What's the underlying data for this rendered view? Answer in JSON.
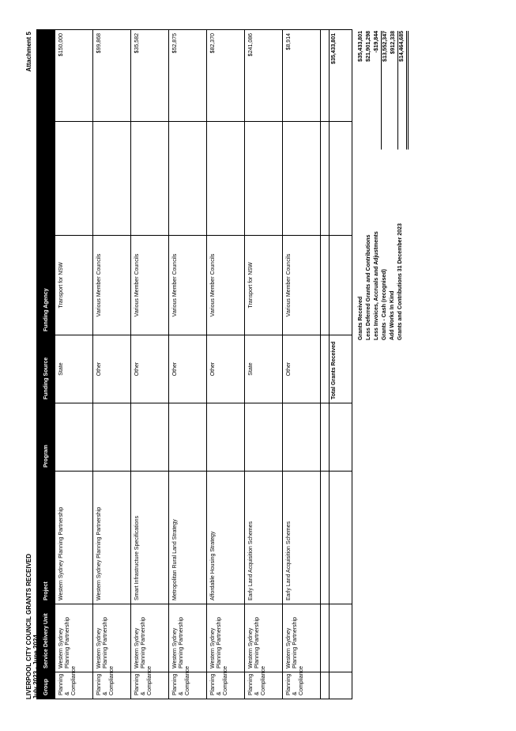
{
  "header": {
    "title_line1": "LIVERPOOL CITY COUNCIL GRANTS RECEIVED",
    "title_line2": "July 2023 - June 2024",
    "attachment": "Attachment 5"
  },
  "table": {
    "columns": [
      "Group",
      "Service Delivery Unit",
      "Project",
      "Program",
      "Funding Source",
      "Funding Agency",
      ""
    ],
    "rows": [
      {
        "group": "Planning & Compliance",
        "unit": "Western Sydney Planning Partnership",
        "project": "Western Sydney Planning Partnership",
        "program": "",
        "source": "State",
        "agency": "Transport for NSW",
        "amount": "$150,000"
      },
      {
        "group": "Planning & Compliance",
        "unit": "Western Sydney Planning Partnership",
        "project": "Western Sydney Planning Partnership",
        "program": "",
        "source": "Other",
        "agency": "Various Member Councils",
        "amount": "$99,868"
      },
      {
        "group": "Planning & Compliance",
        "unit": "Western Sydney Planning Partnership",
        "project": "Smart Infrastructure Specifications",
        "program": "",
        "source": "Other",
        "agency": "Various Member Councils",
        "amount": "$35,582"
      },
      {
        "group": "Planning & Compliance",
        "unit": "Western Sydney Planning Partnership",
        "project": "Metropolitan Rural Land Strategy",
        "program": "",
        "source": "Other",
        "agency": "Various Member Councils",
        "amount": "$52,875"
      },
      {
        "group": "Planning & Compliance",
        "unit": "Western Sydney Planning Partnership",
        "project": "Affordable Housing Strategy",
        "program": "",
        "source": "Other",
        "agency": "Various Member Councils",
        "amount": "$82,370"
      },
      {
        "group": "Planning & Compliance",
        "unit": "Western Sydney Planning Partnership",
        "project": "Early Land Acquisition Schemes",
        "program": "",
        "source": "State",
        "agency": "Transport for NSW",
        "amount": "$241,086"
      },
      {
        "group": "Planning & Compliance",
        "unit": "Western Sydney Planning Partnership",
        "project": "Early Land Acquisition Schemes",
        "program": "",
        "source": "Other",
        "agency": "Various Member Councils",
        "amount": "$8,914"
      }
    ],
    "total_label": "Total Grants Received",
    "total_amount": "$35,433,801"
  },
  "summary": [
    {
      "label": "Grants Received",
      "value": "$35,433,801"
    },
    {
      "label": "Less Deferred Grants and Contributions",
      "value": "$21,901,298"
    },
    {
      "label": "Less Invoices, Accruals and Adjustments",
      "value": "-$19,844"
    },
    {
      "label": "Grants - Cash (recognised)",
      "value": "$13,552,347"
    },
    {
      "label": "Add Works In Kind",
      "value": "$912,338"
    },
    {
      "label": "Grants and Contributions 31 December 2023",
      "value": "$14,464,685"
    }
  ]
}
